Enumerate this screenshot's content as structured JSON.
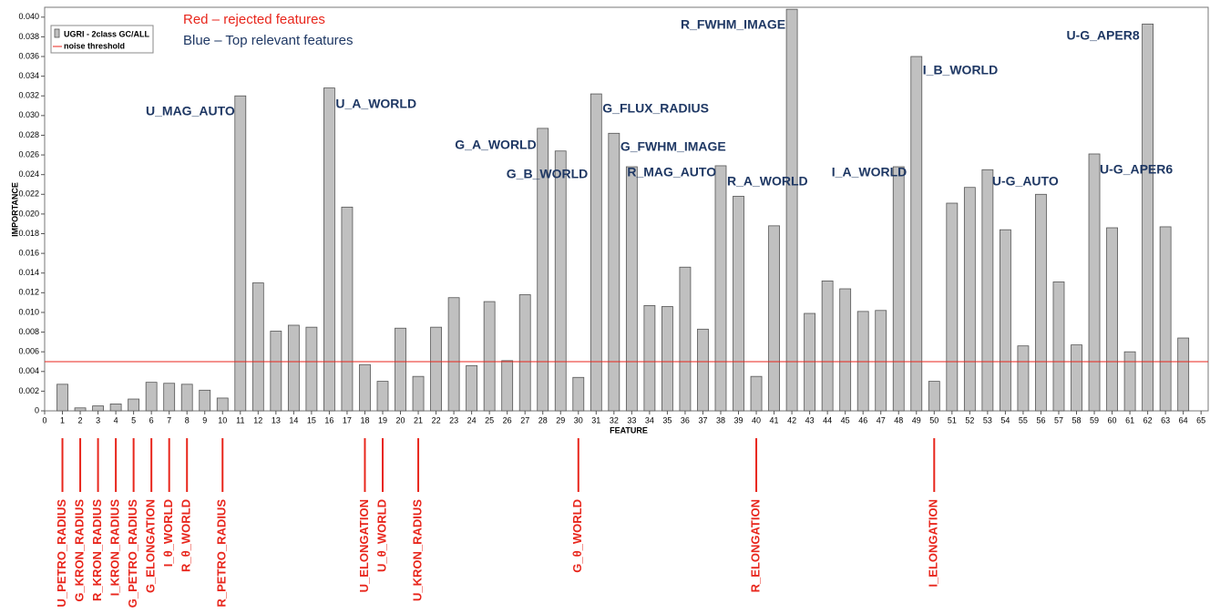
{
  "chart_data": {
    "type": "bar",
    "x_label": "FEATURE",
    "y_label": "IMPORTANCE",
    "xlim": [
      0,
      65.4
    ],
    "xticks": [
      0,
      1,
      2,
      3,
      4,
      5,
      6,
      7,
      8,
      9,
      10,
      11,
      12,
      13,
      14,
      15,
      16,
      17,
      18,
      19,
      20,
      21,
      22,
      23,
      24,
      25,
      26,
      27,
      28,
      29,
      30,
      31,
      32,
      33,
      34,
      35,
      36,
      37,
      38,
      39,
      40,
      41,
      42,
      43,
      44,
      45,
      46,
      47,
      48,
      49,
      50,
      51,
      52,
      53,
      54,
      55,
      56,
      57,
      58,
      59,
      60,
      61,
      62,
      63,
      64,
      65
    ],
    "ylim": [
      0,
      0.041
    ],
    "yticks": [
      0,
      {
        "value": 0.002,
        "label": "0.002"
      },
      {
        "value": 0.004,
        "label": "0.004"
      },
      {
        "value": 0.006,
        "label": "0.006"
      },
      {
        "value": 0.008,
        "label": "0.008"
      },
      {
        "value": 0.01,
        "label": "0.010"
      },
      {
        "value": 0.012,
        "label": "0.012"
      },
      {
        "value": 0.014,
        "label": "0.014"
      },
      {
        "value": 0.016,
        "label": "0.016"
      },
      {
        "value": 0.018,
        "label": "0.018"
      },
      {
        "value": 0.02,
        "label": "0.020"
      },
      {
        "value": 0.022,
        "label": "0.022"
      },
      {
        "value": 0.024,
        "label": "0.024"
      },
      {
        "value": 0.026,
        "label": "0.026"
      },
      {
        "value": 0.028,
        "label": "0.028"
      },
      {
        "value": 0.03,
        "label": "0.030"
      },
      {
        "value": 0.032,
        "label": "0.032"
      },
      {
        "value": 0.034,
        "label": "0.034"
      },
      {
        "value": 0.036,
        "label": "0.036"
      },
      {
        "value": 0.038,
        "label": "0.038"
      },
      {
        "value": 0.04,
        "label": "0.040"
      }
    ],
    "series": [
      {
        "name": "UGRI - 2class GC/ALL",
        "color": "#c0c0c0",
        "x": [
          1,
          2,
          3,
          4,
          5,
          6,
          7,
          8,
          9,
          10,
          11,
          12,
          13,
          14,
          15,
          16,
          17,
          18,
          19,
          20,
          21,
          22,
          23,
          24,
          25,
          26,
          27,
          28,
          29,
          30,
          31,
          32,
          33,
          34,
          35,
          36,
          37,
          38,
          39,
          40,
          41,
          42,
          43,
          44,
          45,
          46,
          47,
          48,
          49,
          50,
          51,
          52,
          53,
          54,
          55,
          56,
          57,
          58,
          59,
          60,
          61,
          62,
          63,
          64
        ],
        "values": [
          0.0027,
          0.0003,
          0.0005,
          0.0007,
          0.0012,
          0.0029,
          0.0028,
          0.0027,
          0.0021,
          0.0013,
          0.032,
          0.013,
          0.0081,
          0.0087,
          0.0085,
          0.0328,
          0.0207,
          0.0047,
          0.003,
          0.0084,
          0.0035,
          0.0085,
          0.0115,
          0.0046,
          0.0111,
          0.0051,
          0.0118,
          0.0287,
          0.0264,
          0.0034,
          0.0322,
          0.0282,
          0.0248,
          0.0107,
          0.0106,
          0.0146,
          0.0083,
          0.0249,
          0.0218,
          0.0035,
          0.0188,
          0.0408,
          0.0099,
          0.0132,
          0.0124,
          0.0101,
          0.0102,
          0.0248,
          0.036,
          0.003,
          0.0211,
          0.0227,
          0.0245,
          0.0184,
          0.0066,
          0.022,
          0.0131,
          0.0067,
          0.0261,
          0.0186,
          0.006,
          0.0393,
          0.0187,
          0.0074
        ]
      }
    ],
    "threshold": {
      "name": "noise threshold",
      "value": 0.005,
      "color": "#e8261c"
    },
    "notes": [
      {
        "text": "Red – rejected features",
        "color": "#e8261c"
      },
      {
        "text": "Blue – Top relevant features",
        "color": "#1f3864"
      }
    ],
    "top_features": [
      {
        "text": "U_MAG_AUTO",
        "x": 11
      },
      {
        "text": "U_A_WORLD",
        "x": 16
      },
      {
        "text": "G_A_WORLD",
        "x": 28
      },
      {
        "text": "G_B_WORLD",
        "x": 29
      },
      {
        "text": "G_FLUX_RADIUS",
        "x": 31
      },
      {
        "text": "G_FWHM_IMAGE",
        "x": 32
      },
      {
        "text": "R_MAG_AUTO",
        "x": 33
      },
      {
        "text": "R_A_WORLD",
        "x": 38
      },
      {
        "text": "R_FWHM_IMAGE",
        "x": 42
      },
      {
        "text": "I_A_WORLD",
        "x": 48
      },
      {
        "text": "I_B_WORLD",
        "x": 49
      },
      {
        "text": "U-G_AUTO",
        "x": 53
      },
      {
        "text": "U-G_APER6",
        "x": 59
      },
      {
        "text": "U-G_APER8",
        "x": 62
      }
    ],
    "rejected_features": [
      {
        "text": "U_PETRO_RADIUS",
        "x": 1
      },
      {
        "text": "G_KRON_RADIUS",
        "x": 2
      },
      {
        "text": "R_KRON_RADIUS",
        "x": 3
      },
      {
        "text": "I_KRON_RADIUS",
        "x": 4
      },
      {
        "text": "G_PETRO_RADIUS",
        "x": 5
      },
      {
        "text": "G_ELONGATION",
        "x": 6
      },
      {
        "text": "I_θ_WORLD",
        "x": 7
      },
      {
        "text": "R_θ_WORLD",
        "x": 8
      },
      {
        "text": "R_PETRO_RADIUS",
        "x": 10
      },
      {
        "text": "U_ELONGATION",
        "x": 18
      },
      {
        "text": "U_θ_WORLD",
        "x": 19
      },
      {
        "text": "U_KRON_RADIUS",
        "x": 21
      },
      {
        "text": "G_θ_WORLD",
        "x": 30
      },
      {
        "text": "R_ELONGATION",
        "x": 40
      },
      {
        "text": "I_ELONGATION",
        "x": 50
      }
    ]
  }
}
